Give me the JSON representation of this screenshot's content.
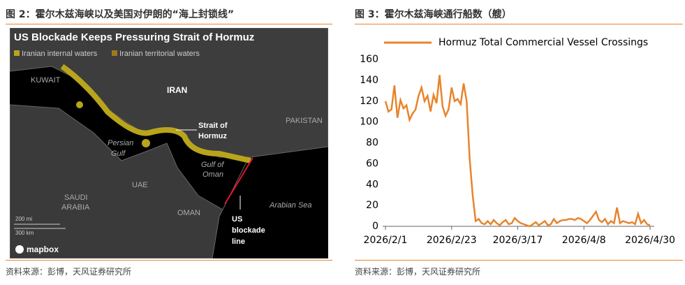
{
  "left_figure": {
    "caption": "图 2：霍尔木兹海峡以及美国对伊朗的“海上封锁线”",
    "map": {
      "title": "US Blockade Keeps Pressuring Strait of Hormuz",
      "legend": [
        "Iranian internal waters",
        "Iranian territorial waters"
      ],
      "labels": {
        "kuwait": "KUWAIT",
        "iran": "IRAN",
        "pakistan": "PAKISTAN",
        "persian_gulf": [
          "Persian",
          "Gulf"
        ],
        "gulf_of_oman": [
          "Gulf of",
          "Oman"
        ],
        "uae": "UAE",
        "saudi_arabia": [
          "SAUDI",
          "ARABIA"
        ],
        "oman": "OMAN",
        "arabian_sea": "Arabian Sea",
        "strait": [
          "Strait of",
          "Hormuz"
        ],
        "blockade": [
          "US",
          "blockade",
          "line"
        ]
      },
      "scale": [
        "200 mi",
        "300 km"
      ],
      "attribution": "mapbox"
    },
    "source": "资料来源：彭博，天风证券研究所"
  },
  "right_figure": {
    "caption": "图 3：霍尔木兹海峡通行船数（艘）",
    "source": "资料来源：彭博，天风证券研究所"
  },
  "chart_data": {
    "type": "line",
    "categories": [
      "2026/2/1",
      null,
      null,
      null,
      null,
      null,
      null,
      null,
      null,
      null,
      null,
      null,
      null,
      null,
      null,
      null,
      null,
      null,
      null,
      null,
      null,
      null,
      "2026/2/23",
      null,
      null,
      null,
      null,
      null,
      null,
      null,
      null,
      null,
      null,
      null,
      null,
      null,
      null,
      null,
      null,
      null,
      null,
      null,
      null,
      null,
      "2026/3/17",
      null,
      null,
      null,
      null,
      null,
      null,
      null,
      null,
      null,
      null,
      null,
      null,
      null,
      null,
      null,
      null,
      null,
      null,
      null,
      null,
      null,
      "2026/4/8",
      null,
      null,
      null,
      null,
      null,
      null,
      null,
      null,
      null,
      null,
      null,
      null,
      null,
      null,
      null,
      null,
      null,
      null,
      null,
      null,
      null,
      "2026/4/30"
    ],
    "series": [
      {
        "name": "Hormuz Total Commercial Vessel Crossings",
        "color": "#e8842c",
        "values": [
          120,
          110,
          112,
          135,
          104,
          121,
          113,
          116,
          102,
          108,
          112,
          125,
          133,
          120,
          125,
          110,
          126,
          118,
          145,
          115,
          106,
          112,
          133,
          120,
          122,
          117,
          137,
          120,
          65,
          30,
          5,
          7,
          3,
          2,
          5,
          2,
          6,
          3,
          1,
          4,
          6,
          2,
          3,
          8,
          5,
          3,
          2,
          1,
          0,
          2,
          4,
          1,
          3,
          5,
          1,
          2,
          7,
          3,
          5,
          6,
          6,
          7,
          7,
          6,
          8,
          7,
          5,
          3,
          6,
          10,
          14,
          6,
          4,
          7,
          2,
          5,
          3,
          18,
          3,
          5,
          4,
          3,
          4,
          2,
          12,
          3,
          6,
          2,
          1
        ]
      }
    ],
    "ylim": [
      0,
      160
    ],
    "yticks": [
      0,
      20,
      40,
      60,
      80,
      100,
      120,
      140,
      160
    ],
    "legend": "top"
  }
}
